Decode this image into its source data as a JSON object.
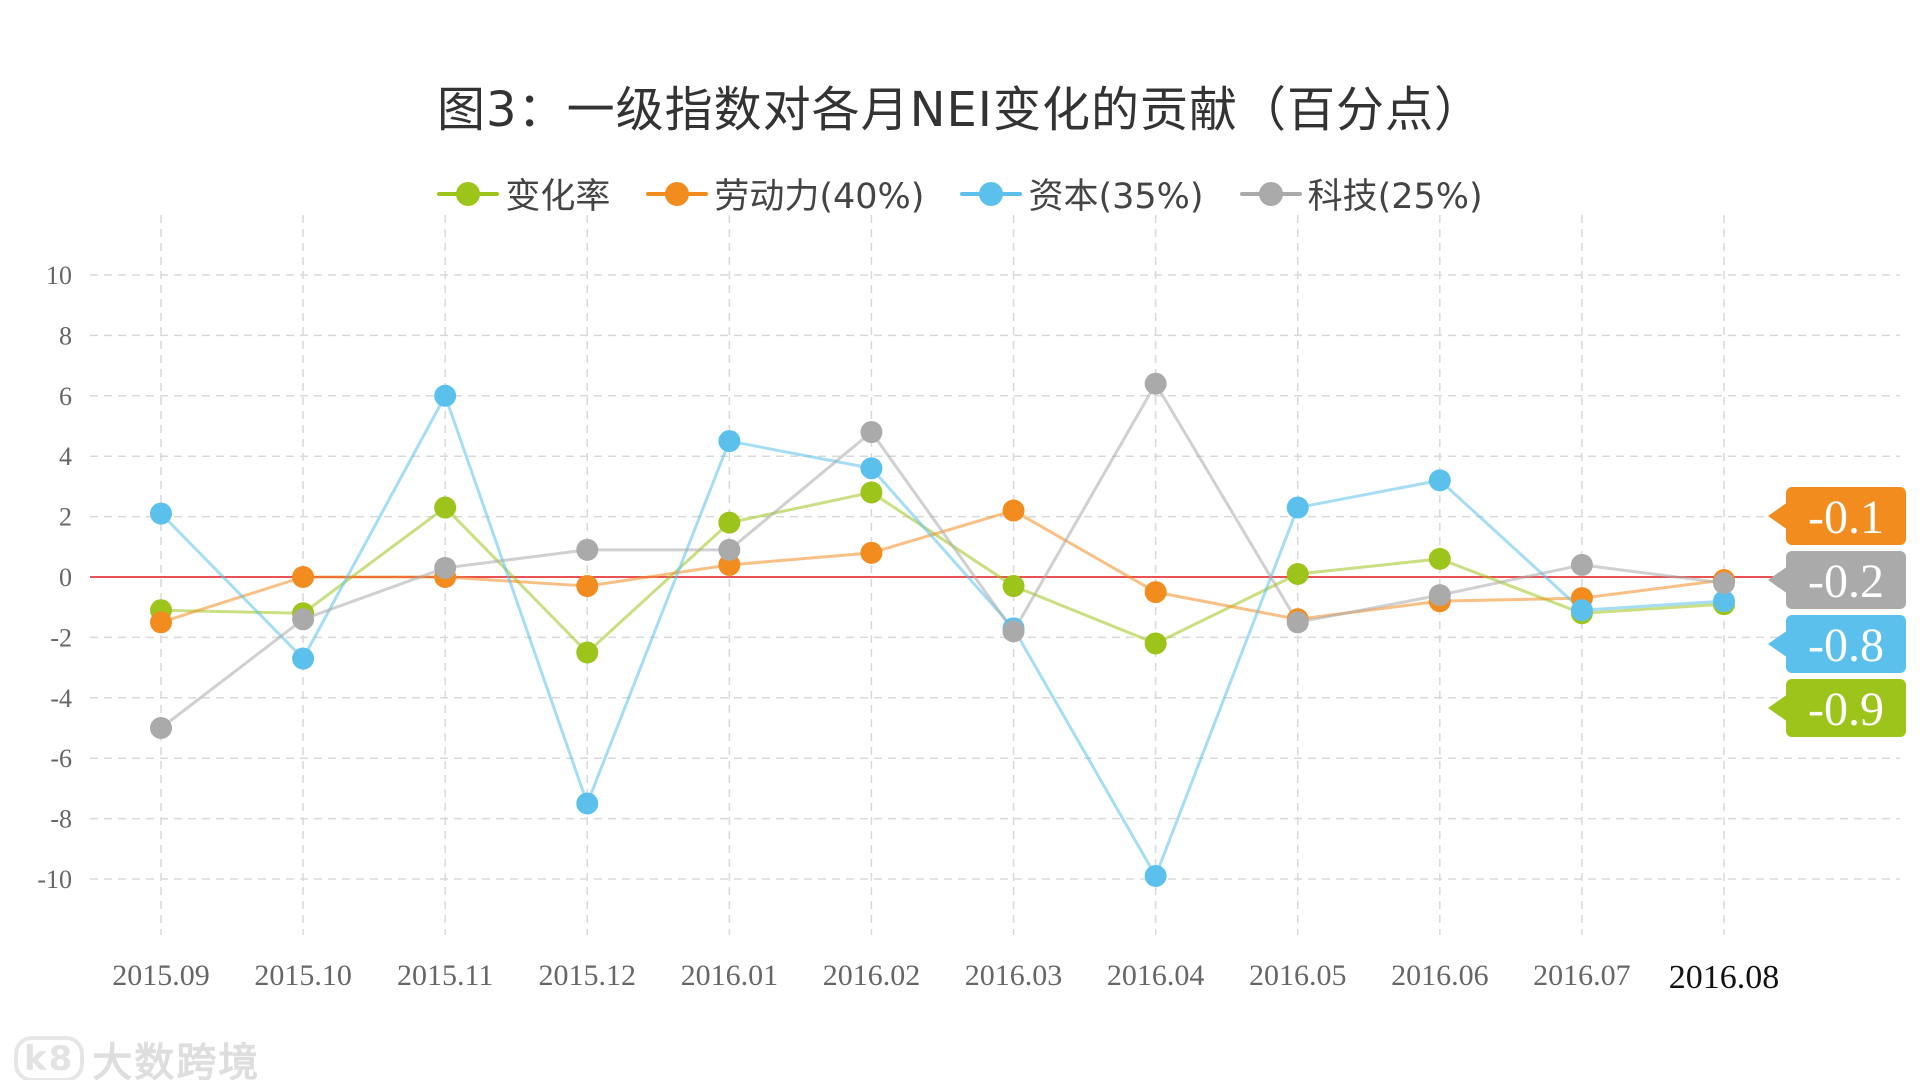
{
  "chart_data": {
    "type": "line",
    "title": "图3：一级指数对各月NEI变化的贡献（百分点）",
    "xlabel": "",
    "ylabel": "",
    "ylim": [
      -10,
      10
    ],
    "yticks": [
      10,
      8,
      6,
      4,
      2,
      0,
      -2,
      -4,
      -6,
      -8,
      -10
    ],
    "grid": true,
    "legend_position": "top-center",
    "categories": [
      "2015.09",
      "2015.10",
      "2015.11",
      "2015.12",
      "2016.01",
      "2016.02",
      "2016.03",
      "2016.04",
      "2016.05",
      "2016.06",
      "2016.07",
      "2016.08"
    ],
    "series": [
      {
        "name": "变化率",
        "color": "#9dc41b",
        "values": [
          -1.1,
          -1.2,
          2.3,
          -2.5,
          1.8,
          2.8,
          -0.3,
          -2.2,
          0.1,
          0.6,
          -1.2,
          -0.9
        ],
        "end_label": "-0.9"
      },
      {
        "name": "劳动力(40%)",
        "color": "#f28c1f",
        "values": [
          -1.5,
          0.0,
          0.0,
          -0.3,
          0.4,
          0.8,
          2.2,
          -0.5,
          -1.4,
          -0.8,
          -0.7,
          -0.1
        ],
        "end_label": "-0.1"
      },
      {
        "name": "资本(35%)",
        "color": "#5bc1ec",
        "values": [
          2.1,
          -2.7,
          6.0,
          -7.5,
          4.5,
          3.6,
          -1.7,
          -9.9,
          2.3,
          3.2,
          -1.1,
          -0.8
        ],
        "end_label": "-0.8"
      },
      {
        "name": "科技(25%)",
        "color": "#aaaaaa",
        "values": [
          -5.0,
          -1.4,
          0.3,
          0.9,
          0.9,
          4.8,
          -1.8,
          6.4,
          -1.5,
          -0.6,
          0.4,
          -0.2
        ],
        "end_label": "-0.2"
      }
    ],
    "zero_line_color": "#e0191b"
  },
  "watermark": {
    "mark": "k8",
    "text": "大数跨境"
  }
}
